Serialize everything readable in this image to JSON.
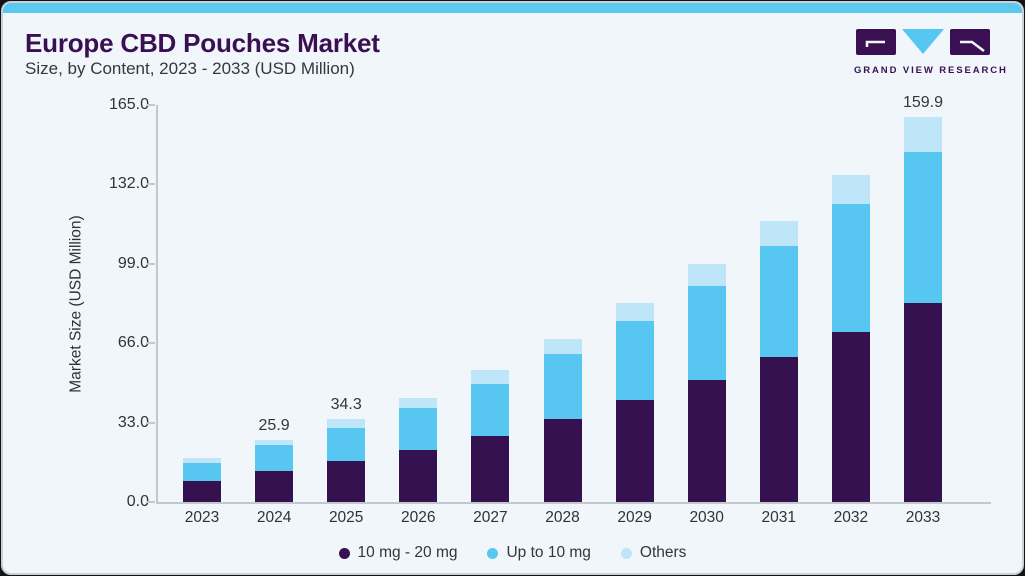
{
  "header": {
    "title": "Europe CBD Pouches Market",
    "subtitle": "Size, by Content, 2023 - 2033 (USD Million)"
  },
  "logo": {
    "text": "GRAND VIEW RESEARCH",
    "mark_purple": "#3A1053",
    "mark_blue": "#56C7F2"
  },
  "colors": {
    "card_background": "#F0F6FA",
    "top_accent": "#5BC8F0",
    "axis_line": "#C2C8CE",
    "text_dark": "#2F3237",
    "title_purple": "#3A1053"
  },
  "chart_data": {
    "type": "bar",
    "stacked": true,
    "title": "Europe CBD Pouches Market Size, by Content, 2023 - 2033 (USD Million)",
    "ylabel": "Market Size (USD Million)",
    "xlabel": "",
    "ylim": [
      0,
      165
    ],
    "yticks": [
      "0.0",
      "33.0",
      "66.0",
      "99.0",
      "132.0",
      "165.0"
    ],
    "grid": false,
    "legend_position": "bottom",
    "categories": [
      "2023",
      "2024",
      "2025",
      "2026",
      "2027",
      "2028",
      "2029",
      "2030",
      "2031",
      "2032",
      "2033"
    ],
    "series": [
      {
        "name": "10 mg - 20 mg",
        "color": "#35124F",
        "values": [
          8.9,
          12.8,
          17.1,
          21.7,
          27.6,
          34.5,
          42.3,
          50.8,
          60.1,
          70.5,
          82.8
        ]
      },
      {
        "name": "Up to 10 mg",
        "color": "#57C7F2",
        "values": [
          7.4,
          10.8,
          13.8,
          17.4,
          21.5,
          27.0,
          32.8,
          39.1,
          46.4,
          53.3,
          62.8
        ]
      },
      {
        "name": "Others",
        "color": "#BFE6F8",
        "values": [
          2.2,
          2.3,
          3.4,
          4.3,
          5.7,
          6.4,
          7.6,
          9.1,
          10.4,
          12.2,
          14.3
        ]
      }
    ],
    "totals_shown": [
      "",
      "25.9",
      "34.3",
      "",
      "",
      "",
      "",
      "",
      "",
      "",
      "159.9"
    ]
  }
}
